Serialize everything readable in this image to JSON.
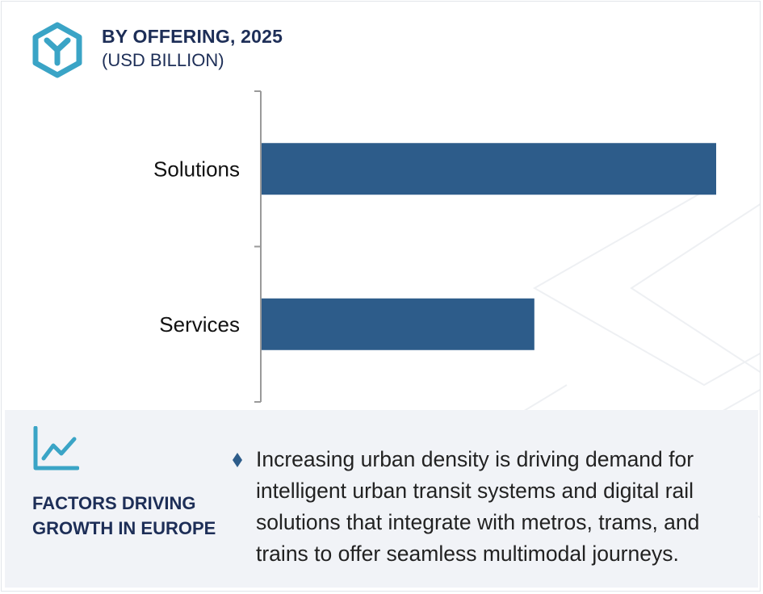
{
  "header": {
    "title": "BY OFFERING, 2025",
    "subtitle": "(USD BILLION)",
    "logo_icon": "hexagon-y-logo-icon",
    "accent_color": "#3aa4c6"
  },
  "chart_data": {
    "type": "bar",
    "orientation": "horizontal",
    "title": "BY OFFERING, 2025",
    "subtitle": "(USD BILLION)",
    "categories": [
      "Solutions",
      "Services"
    ],
    "values": [
      1.0,
      0.6
    ],
    "xlim": [
      0,
      1.0
    ],
    "bar_color": "#2d5c8a",
    "grid": false,
    "legend": "none"
  },
  "factors": {
    "icon": "line-chart-growth-icon",
    "title": "FACTORS DRIVING GROWTH IN EUROPE",
    "bullet_icon": "diamond-bullet-icon",
    "bullets": [
      "Increasing urban density is driving demand for intelligent urban transit systems and digital rail solutions that integrate with metros, trams, and trains to offer seamless multimodal journeys."
    ]
  }
}
